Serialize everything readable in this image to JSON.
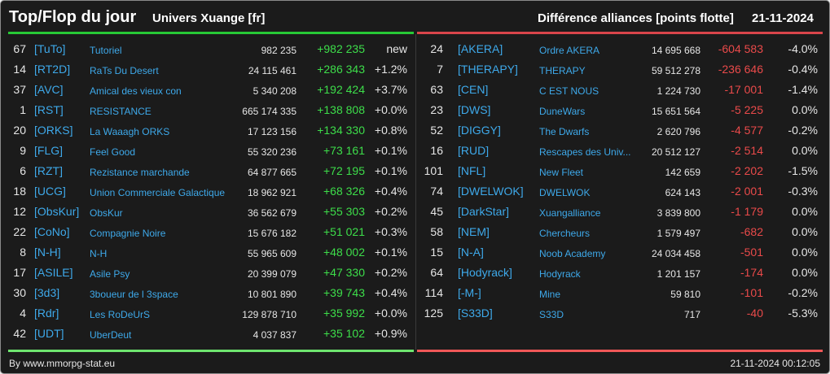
{
  "header": {
    "title": "Top/Flop du jour",
    "universe": "Univers Xuange [fr]",
    "subtitle": "Différence alliances [points flotte]",
    "date": "21-11-2024"
  },
  "colors": {
    "background": "#1b1b1b",
    "top_rule": "#27c936",
    "flop_rule": "#d9454b",
    "gain": "#3dde4a",
    "loss": "#ea4a4a",
    "link": "#3ea9ea",
    "text": "#e6e6e6"
  },
  "top": [
    {
      "rank": "67",
      "tag": "[TuTo]",
      "name": "Tutoriel",
      "points": "982 235",
      "delta": "+982 235",
      "pct": "new"
    },
    {
      "rank": "14",
      "tag": "[RT2D]",
      "name": "RaTs Du Desert",
      "points": "24 115 461",
      "delta": "+286 343",
      "pct": "+1.2%"
    },
    {
      "rank": "37",
      "tag": "[AVC]",
      "name": "Amical des vieux con",
      "points": "5 340 208",
      "delta": "+192 424",
      "pct": "+3.7%"
    },
    {
      "rank": "1",
      "tag": "[RST]",
      "name": "RESISTANCE",
      "points": "665 174 335",
      "delta": "+138 808",
      "pct": "+0.0%"
    },
    {
      "rank": "20",
      "tag": "[ORKS]",
      "name": "La Waaagh ORKS",
      "points": "17 123 156",
      "delta": "+134 330",
      "pct": "+0.8%"
    },
    {
      "rank": "9",
      "tag": "[FLG]",
      "name": "Feel Good",
      "points": "55 320 236",
      "delta": "+73 161",
      "pct": "+0.1%"
    },
    {
      "rank": "6",
      "tag": "[RZT]",
      "name": "Rezistance marchande",
      "points": "64 877 665",
      "delta": "+72 195",
      "pct": "+0.1%"
    },
    {
      "rank": "18",
      "tag": "[UCG]",
      "name": "Union Commerciale Galactique",
      "points": "18 962 921",
      "delta": "+68 326",
      "pct": "+0.4%"
    },
    {
      "rank": "12",
      "tag": "[ObsKur]",
      "name": "ObsKur",
      "points": "36 562 679",
      "delta": "+55 303",
      "pct": "+0.2%"
    },
    {
      "rank": "22",
      "tag": "[CoNo]",
      "name": "Compagnie Noire",
      "points": "15 676 182",
      "delta": "+51 021",
      "pct": "+0.3%"
    },
    {
      "rank": "8",
      "tag": "[N-H]",
      "name": "N-H",
      "points": "55 965 609",
      "delta": "+48 002",
      "pct": "+0.1%"
    },
    {
      "rank": "17",
      "tag": "[ASILE]",
      "name": "Asile Psy",
      "points": "20 399 079",
      "delta": "+47 330",
      "pct": "+0.2%"
    },
    {
      "rank": "30",
      "tag": "[3d3]",
      "name": "3boueur de l 3space",
      "points": "10 801 890",
      "delta": "+39 743",
      "pct": "+0.4%"
    },
    {
      "rank": "4",
      "tag": "[Rdr]",
      "name": "Les RoDeUrS",
      "points": "129 878 710",
      "delta": "+35 992",
      "pct": "+0.0%"
    },
    {
      "rank": "42",
      "tag": "[UDT]",
      "name": "UberDeut",
      "points": "4 037 837",
      "delta": "+35 102",
      "pct": "+0.9%"
    }
  ],
  "flop": [
    {
      "rank": "24",
      "tag": "[AKERA]",
      "name": "Ordre AKERA",
      "points": "14 695 668",
      "delta": "-604 583",
      "pct": "-4.0%"
    },
    {
      "rank": "7",
      "tag": "[THERAPY]",
      "name": "THERAPY",
      "points": "59 512 278",
      "delta": "-236 646",
      "pct": "-0.4%"
    },
    {
      "rank": "63",
      "tag": "[CEN]",
      "name": "C EST NOUS",
      "points": "1 224 730",
      "delta": "-17 001",
      "pct": "-1.4%"
    },
    {
      "rank": "23",
      "tag": "[DWS]",
      "name": "DuneWars",
      "points": "15 651 564",
      "delta": "-5 225",
      "pct": "0.0%"
    },
    {
      "rank": "52",
      "tag": "[DIGGY]",
      "name": "The Dwarfs",
      "points": "2 620 796",
      "delta": "-4 577",
      "pct": "-0.2%"
    },
    {
      "rank": "16",
      "tag": "[RUD]",
      "name": "Rescapes des Univ...",
      "points": "20 512 127",
      "delta": "-2 514",
      "pct": "0.0%"
    },
    {
      "rank": "101",
      "tag": "[NFL]",
      "name": "New Fleet",
      "points": "142 659",
      "delta": "-2 202",
      "pct": "-1.5%"
    },
    {
      "rank": "74",
      "tag": "[DWELWOK]",
      "name": "DWELWOK",
      "points": "624 143",
      "delta": "-2 001",
      "pct": "-0.3%"
    },
    {
      "rank": "45",
      "tag": "[DarkStar]",
      "name": "Xuangalliance",
      "points": "3 839 800",
      "delta": "-1 179",
      "pct": "0.0%"
    },
    {
      "rank": "58",
      "tag": "[NEM]",
      "name": "Chercheurs",
      "points": "1 579 497",
      "delta": "-682",
      "pct": "0.0%"
    },
    {
      "rank": "15",
      "tag": "[N-A]",
      "name": "Noob Academy",
      "points": "24 034 458",
      "delta": "-501",
      "pct": "0.0%"
    },
    {
      "rank": "64",
      "tag": "[Hodyrack]",
      "name": "Hodyrack",
      "points": "1 201 157",
      "delta": "-174",
      "pct": "0.0%"
    },
    {
      "rank": "114",
      "tag": "[-M-]",
      "name": "Mine",
      "points": "59 810",
      "delta": "-101",
      "pct": "-0.2%"
    },
    {
      "rank": "125",
      "tag": "[S33D]",
      "name": "S33D",
      "points": "717",
      "delta": "-40",
      "pct": "-5.3%"
    }
  ],
  "footer": {
    "source": "By www.mmorpg-stat.eu",
    "timestamp": "21-11-2024 00:12:05"
  }
}
